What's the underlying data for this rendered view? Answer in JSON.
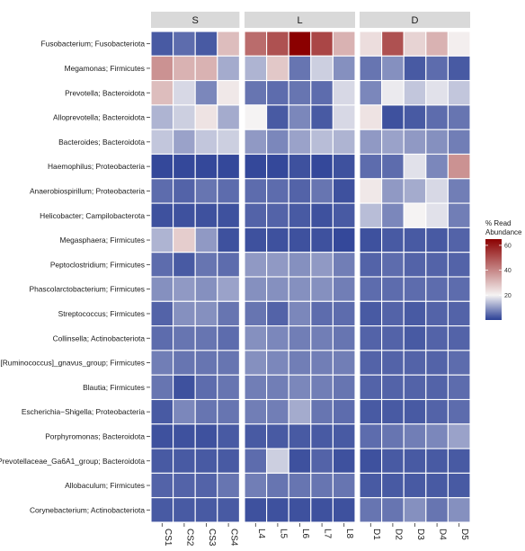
{
  "chart_data": {
    "type": "heatmap",
    "title": "",
    "xlabel": "",
    "ylabel": "",
    "facets": [
      {
        "label": "S",
        "columns": [
          "CS1",
          "CS2",
          "CS3",
          "CS4"
        ]
      },
      {
        "label": "L",
        "columns": [
          "L4",
          "L5",
          "L6",
          "L7",
          "L8"
        ]
      },
      {
        "label": "D",
        "columns": [
          "D1",
          "D2",
          "D3",
          "D4",
          "D5"
        ]
      }
    ],
    "rows": [
      "Fusobacterium; Fusobacteriota",
      "Megamonas; Firmicutes",
      "Prevotella; Bacteroidota",
      "Alloprevotella; Bacteroidota",
      "Bacteroides; Bacteroidota",
      "Haemophilus; Proteobacteria",
      "Anaerobiospirillum; Proteobacteria",
      "Helicobacter; Campilobacterota",
      "Megasphaera; Firmicutes",
      "Peptoclostridium; Firmicutes",
      "Phascolarctobacterium; Firmicutes",
      "Streptococcus; Firmicutes",
      "Collinsella; Actinobacteriota",
      "[Ruminococcus]_gnavus_group; Firmicutes",
      "Blautia; Firmicutes",
      "Escherichia−Shigella; Proteobacteria",
      "Porphyromonas; Bacteroidota",
      "Prevotellaceae_Ga6A1_group; Bacteroidota",
      "Allobaculum; Firmicutes",
      "Corynebacterium; Actinobacteriota"
    ],
    "values": [
      [
        3,
        5,
        3,
        30,
        45,
        50,
        65,
        52,
        32,
        24,
        50,
        26,
        32,
        21
      ],
      [
        38,
        32,
        32,
        12,
        13,
        28,
        6,
        16,
        9,
        6,
        9,
        3,
        5,
        3
      ],
      [
        30,
        17,
        8,
        22,
        6,
        5,
        6,
        5,
        17,
        8,
        19,
        15,
        18,
        15
      ],
      [
        13,
        16,
        23,
        12,
        20,
        3,
        8,
        3,
        17,
        23,
        2,
        3,
        5,
        6
      ],
      [
        15,
        11,
        15,
        16,
        10,
        8,
        11,
        14,
        13,
        10,
        11,
        10,
        9,
        7
      ],
      [
        1,
        1,
        1,
        1,
        1,
        1,
        2,
        1,
        2,
        5,
        5,
        18,
        8,
        38
      ],
      [
        5,
        4,
        6,
        5,
        5,
        5,
        4,
        6,
        2,
        22,
        10,
        12,
        17,
        7
      ],
      [
        2,
        2,
        2,
        2,
        4,
        4,
        3,
        2,
        3,
        14,
        8,
        20,
        18,
        7
      ],
      [
        13,
        27,
        10,
        2,
        2,
        2,
        2,
        2,
        1,
        2,
        3,
        3,
        3,
        4
      ],
      [
        5,
        3,
        6,
        5,
        10,
        10,
        9,
        10,
        7,
        4,
        5,
        4,
        4,
        4
      ],
      [
        9,
        10,
        9,
        11,
        9,
        9,
        9,
        9,
        7,
        5,
        5,
        5,
        5,
        5
      ],
      [
        4,
        9,
        9,
        6,
        6,
        4,
        8,
        5,
        5,
        3,
        4,
        3,
        4,
        4
      ],
      [
        5,
        6,
        6,
        5,
        9,
        8,
        7,
        7,
        6,
        4,
        4,
        3,
        4,
        4
      ],
      [
        7,
        6,
        6,
        6,
        9,
        8,
        7,
        7,
        7,
        4,
        4,
        4,
        4,
        5
      ],
      [
        6,
        2,
        5,
        6,
        7,
        7,
        8,
        7,
        6,
        4,
        4,
        4,
        4,
        5
      ],
      [
        3,
        8,
        6,
        6,
        7,
        7,
        12,
        6,
        5,
        3,
        3,
        3,
        4,
        5
      ],
      [
        2,
        2,
        2,
        3,
        3,
        3,
        3,
        3,
        3,
        5,
        6,
        7,
        8,
        11
      ],
      [
        3,
        3,
        3,
        3,
        5,
        16,
        2,
        4,
        2,
        2,
        3,
        3,
        3,
        3
      ],
      [
        4,
        4,
        4,
        6,
        7,
        6,
        6,
        6,
        6,
        3,
        3,
        3,
        3,
        3
      ],
      [
        3,
        3,
        3,
        3,
        2,
        2,
        2,
        2,
        2,
        6,
        6,
        9,
        6,
        9
      ]
    ],
    "scale": {
      "min": 0,
      "mid": 20,
      "max": 65,
      "low_color": "#2a3f95",
      "mid_color": "#f5f3f3",
      "high_color": "#8b0000"
    },
    "legend": {
      "title_lines": [
        "% Read",
        "Abundance"
      ],
      "ticks": [
        20,
        40,
        60
      ],
      "position": "right"
    },
    "strip_color": "#d9d9d9",
    "grid_line_color": "#ffffff"
  }
}
